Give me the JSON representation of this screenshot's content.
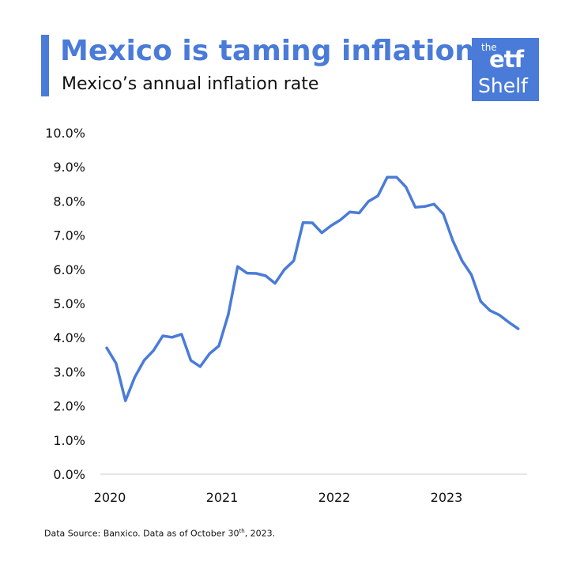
{
  "header": {
    "title": "Mexico is taming inflation",
    "subtitle": "Mexico’s annual inflation rate"
  },
  "logo": {
    "line1": "the",
    "line2": "etf",
    "line3": "Shelf"
  },
  "footnote": {
    "prefix": "Data Source: Banxico. Data as of October 30",
    "sup": "th",
    "suffix": ", 2023."
  },
  "colors": {
    "accent": "#4a7bd8",
    "axis": "#dddddd",
    "text": "#111111"
  },
  "chart_data": {
    "type": "line",
    "title": "",
    "xlabel": "",
    "ylabel": "",
    "ylim": [
      0,
      10
    ],
    "y_ticks": [
      "0.0%",
      "1.0%",
      "2.0%",
      "3.0%",
      "4.0%",
      "5.0%",
      "6.0%",
      "7.0%",
      "8.0%",
      "9.0%",
      "10.0%"
    ],
    "x_ticks": [
      "2020",
      "2021",
      "2022",
      "2023"
    ],
    "grid": false,
    "series": [
      {
        "color": "#4a7bd8",
        "x": [
          "2020-01",
          "2020-02",
          "2020-03",
          "2020-04",
          "2020-05",
          "2020-06",
          "2020-07",
          "2020-08",
          "2020-09",
          "2020-10",
          "2020-11",
          "2020-12",
          "2021-01",
          "2021-02",
          "2021-03",
          "2021-04",
          "2021-05",
          "2021-06",
          "2021-07",
          "2021-08",
          "2021-09",
          "2021-10",
          "2021-11",
          "2021-12",
          "2022-01",
          "2022-02",
          "2022-03",
          "2022-04",
          "2022-05",
          "2022-06",
          "2022-07",
          "2022-08",
          "2022-09",
          "2022-10",
          "2022-11",
          "2022-12",
          "2023-01",
          "2023-02",
          "2023-03",
          "2023-04",
          "2023-05",
          "2023-06",
          "2023-07",
          "2023-08",
          "2023-09"
        ],
        "values": [
          3.7,
          3.25,
          2.15,
          2.84,
          3.33,
          3.62,
          4.05,
          4.01,
          4.1,
          3.33,
          3.15,
          3.53,
          3.76,
          4.67,
          6.08,
          5.89,
          5.88,
          5.81,
          5.59,
          5.99,
          6.25,
          7.37,
          7.36,
          7.07,
          7.28,
          7.45,
          7.68,
          7.65,
          7.99,
          8.15,
          8.7,
          8.7,
          8.41,
          7.82,
          7.84,
          7.91,
          7.62,
          6.85,
          6.25,
          5.84,
          5.06,
          4.79,
          4.66,
          4.45,
          4.26
        ]
      }
    ]
  }
}
